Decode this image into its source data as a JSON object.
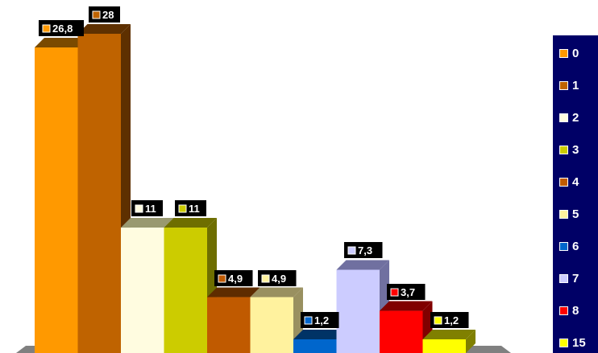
{
  "chart_data": {
    "type": "bar",
    "categories": [
      "0",
      "1",
      "2",
      "3",
      "4",
      "5",
      "6",
      "7",
      "8",
      "15"
    ],
    "values": [
      26.8,
      28,
      11,
      11,
      4.9,
      4.9,
      1.2,
      7.3,
      3.7,
      1.2
    ],
    "value_labels": [
      "26,8",
      "28",
      "11",
      "11",
      "4,9",
      "4,9",
      "1,2",
      "7,3",
      "3,7",
      "1,2"
    ],
    "colors": [
      "#FF9900",
      "#BF6300",
      "#FFFCE0",
      "#CCCC00",
      "#C05A00",
      "#FFF29E",
      "#0066CC",
      "#CCCCFF",
      "#FF0000",
      "#FFFF00"
    ],
    "side_colors": [
      "#7A4A00",
      "#5E3000",
      "#999970",
      "#6E6E00",
      "#5E2C00",
      "#999060",
      "#003366",
      "#7070A0",
      "#800000",
      "#808000"
    ],
    "legend_position": "right",
    "legend_background": "#000066",
    "label_background": "#000000",
    "three_d": true,
    "grid": false,
    "ylim": [
      0,
      28
    ]
  }
}
